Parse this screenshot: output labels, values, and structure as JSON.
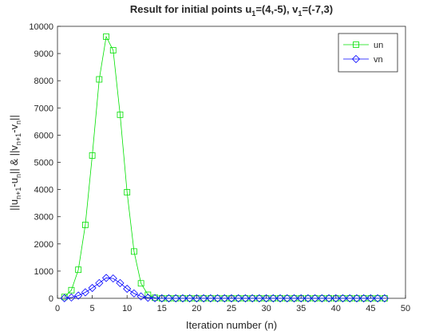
{
  "chart_data": {
    "type": "line",
    "title": [
      "Result for initial points u",
      "1",
      "=(4,-5), v",
      "1",
      "=(-7,3)"
    ],
    "x_label": "Iteration number (n)",
    "y_label": [
      "||u",
      "n+1",
      "-u",
      "n",
      "|| & ||v",
      "n+1",
      "-v",
      "n",
      "||"
    ],
    "x": [
      1,
      2,
      3,
      4,
      5,
      6,
      7,
      8,
      9,
      10,
      11,
      12,
      13,
      14,
      15,
      16,
      17,
      18,
      19,
      20,
      21,
      22,
      23,
      24,
      25,
      26,
      27,
      28,
      29,
      30,
      31,
      32,
      33,
      34,
      35,
      36,
      37,
      38,
      39,
      40,
      41,
      42,
      43,
      44,
      45,
      46,
      47
    ],
    "series": [
      {
        "name": "un",
        "color": "#00e000",
        "marker": "square",
        "values": [
          50,
          300,
          1050,
          2700,
          5250,
          8050,
          9620,
          9120,
          6750,
          3900,
          1720,
          550,
          130,
          20,
          0,
          0,
          0,
          0,
          0,
          0,
          0,
          0,
          0,
          0,
          0,
          0,
          0,
          0,
          0,
          0,
          0,
          0,
          0,
          0,
          0,
          0,
          0,
          0,
          0,
          0,
          0,
          0,
          0,
          0,
          0,
          0,
          0
        ]
      },
      {
        "name": "vn",
        "color": "#0000ff",
        "marker": "diamond",
        "values": [
          5,
          30,
          100,
          220,
          380,
          560,
          750,
          730,
          560,
          350,
          180,
          70,
          20,
          5,
          0,
          0,
          0,
          0,
          0,
          0,
          0,
          0,
          0,
          0,
          0,
          0,
          0,
          0,
          0,
          0,
          0,
          0,
          0,
          0,
          0,
          0,
          0,
          0,
          0,
          0,
          0,
          0,
          0,
          0,
          0,
          0,
          0
        ]
      }
    ],
    "xlim": [
      0,
      50
    ],
    "xticks": [
      0,
      5,
      10,
      15,
      20,
      25,
      30,
      35,
      40,
      45,
      50
    ],
    "ylim": [
      0,
      10000
    ],
    "yticks": [
      0,
      1000,
      2000,
      3000,
      4000,
      5000,
      6000,
      7000,
      8000,
      9000,
      10000
    ],
    "legend": "northeast"
  }
}
